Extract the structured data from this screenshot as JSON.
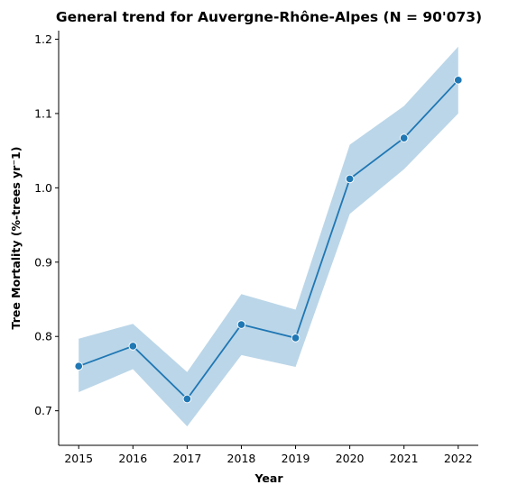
{
  "chart_data": {
    "type": "line",
    "title": "General trend for Auvergne-Rhône-Alpes  (N = 90'073)",
    "xlabel": "Year",
    "ylabel": "Tree Mortality (%-trees yr⁻1)",
    "x": [
      2015,
      2016,
      2017,
      2018,
      2019,
      2020,
      2021,
      2022
    ],
    "series": [
      {
        "values": [
          0.76,
          0.787,
          0.716,
          0.816,
          0.798,
          1.012,
          1.067,
          1.145
        ],
        "ci_lower": [
          0.725,
          0.756,
          0.679,
          0.775,
          0.759,
          0.965,
          1.025,
          1.1
        ],
        "ci_upper": [
          0.797,
          0.817,
          0.752,
          0.857,
          0.836,
          1.058,
          1.11,
          1.19
        ]
      }
    ],
    "yticks": [
      0.7,
      0.8,
      0.9,
      1.0,
      1.1,
      1.2
    ],
    "ytick_labels": [
      "0.7",
      "0.8",
      "0.9",
      "1.0",
      "1.1",
      "1.2"
    ],
    "xtick_labels": [
      "2015",
      "2016",
      "2017",
      "2018",
      "2019",
      "2020",
      "2021",
      "2022"
    ],
    "xlim": [
      2014.63,
      2022.37
    ],
    "ylim": [
      0.6535,
      1.2115
    ],
    "grid": false,
    "colors": {
      "line": "#1f77b4",
      "band": "#1f77b4",
      "marker_edge": "#ffffff"
    }
  }
}
